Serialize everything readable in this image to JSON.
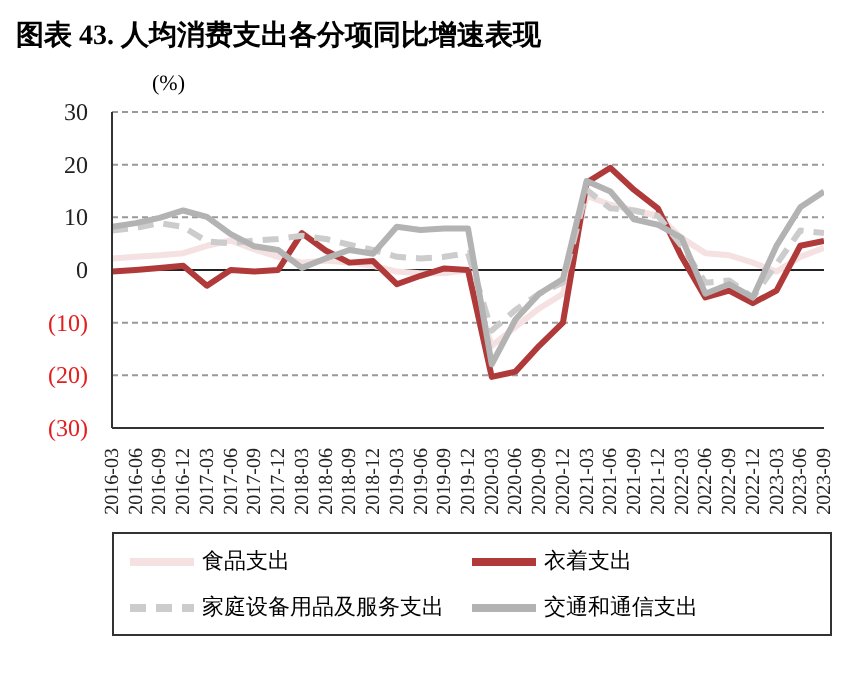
{
  "chart_data": {
    "type": "line",
    "title": "图表 43. 人均消费支出各分项同比增速表现",
    "ylabel": "(%)",
    "categories": [
      "2016-03",
      "2016-06",
      "2016-09",
      "2016-12",
      "2017-03",
      "2017-06",
      "2017-09",
      "2017-12",
      "2018-03",
      "2018-06",
      "2018-09",
      "2018-12",
      "2019-03",
      "2019-06",
      "2019-09",
      "2019-12",
      "2020-03",
      "2020-06",
      "2020-09",
      "2020-12",
      "2021-03",
      "2021-06",
      "2021-09",
      "2021-12",
      "2022-03",
      "2022-06",
      "2022-09",
      "2022-12",
      "2023-03",
      "2023-06",
      "2023-09"
    ],
    "series": [
      {
        "name": "食品支出",
        "color": "#f5e1e1",
        "line_style": "solid",
        "values": [
          2.2,
          2.5,
          2.8,
          3.2,
          4.6,
          5.6,
          3.9,
          2.5,
          1.4,
          1.8,
          1.4,
          0.8,
          -0.3,
          -0.6,
          -0.6,
          0,
          -14.4,
          -10.8,
          -7.3,
          -4.5,
          14.1,
          12.4,
          11.3,
          10.3,
          6.1,
          3.2,
          2.8,
          1.4,
          -0.3,
          2.5,
          4.2
        ]
      },
      {
        "name": "衣着支出",
        "color": "#b03a3a",
        "line_style": "solid",
        "values": [
          -0.3,
          0,
          0.4,
          0.8,
          -3,
          0,
          -0.3,
          0,
          7,
          3.7,
          1.4,
          1.7,
          -2.7,
          -1.1,
          0.3,
          0,
          -20.3,
          -19.3,
          -14.4,
          -10,
          16.6,
          19.4,
          15.2,
          11.7,
          2.5,
          -5.2,
          -3.9,
          -6.3,
          -3.9,
          4.6,
          5.5
        ]
      },
      {
        "name": "家庭设备用品及服务支出",
        "color": "#cccccc",
        "line_style": "dashed",
        "values": [
          7.5,
          8,
          8.9,
          8.2,
          5.4,
          5.1,
          5.6,
          5.9,
          6.5,
          5.9,
          4.8,
          3.8,
          2.5,
          2.2,
          2.5,
          3.2,
          -11.5,
          -7.6,
          -4.5,
          -2.4,
          15.2,
          11.7,
          11.3,
          10.3,
          4.6,
          -2.4,
          -2,
          -5.2,
          1.1,
          7.5,
          7
        ]
      },
      {
        "name": "交通和通信支出",
        "color": "#b3b3b3",
        "line_style": "solid",
        "values": [
          8.2,
          8.9,
          9.9,
          11.3,
          10.1,
          6.8,
          4.5,
          3.8,
          0.4,
          2.2,
          3.8,
          3.1,
          8.2,
          7.6,
          7.9,
          7.9,
          -17.9,
          -9.4,
          -4.5,
          -1.7,
          16.9,
          14.9,
          9.6,
          8.6,
          6.1,
          -4.5,
          -2.7,
          -5.2,
          4.6,
          11.9,
          14.9
        ]
      }
    ],
    "ylim": [
      -30,
      30
    ],
    "yticks": [
      {
        "value": -30,
        "label": "(30)"
      },
      {
        "value": -20,
        "label": "(20)"
      },
      {
        "value": -10,
        "label": "(10)"
      },
      0,
      10,
      20,
      30
    ],
    "grid": "y",
    "legend": "bottom",
    "marker": "none"
  }
}
